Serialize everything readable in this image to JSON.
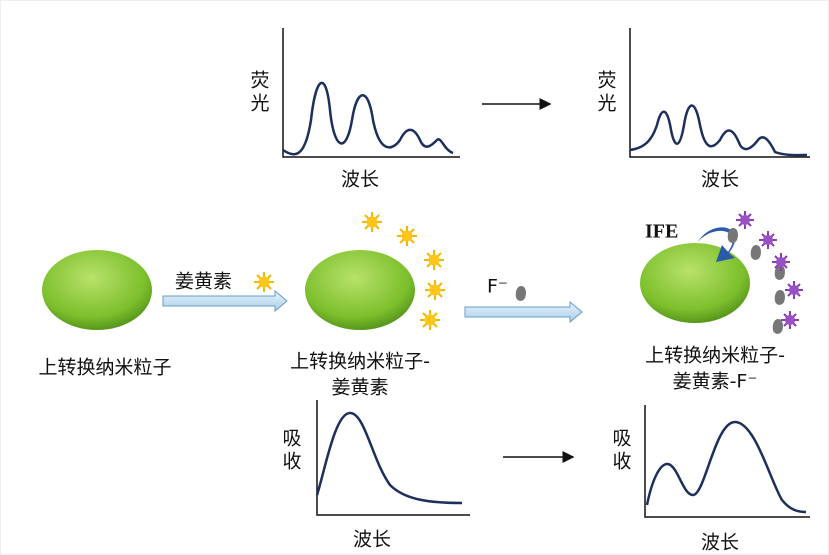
{
  "top_left_plot": {
    "y_label": "荧光",
    "x_label": "波长"
  },
  "top_right_plot": {
    "y_label": "荧光",
    "x_label": "波长"
  },
  "bottom_left_plot": {
    "y_label": "吸收",
    "x_label": "波长"
  },
  "bottom_right_plot": {
    "y_label": "吸收",
    "x_label": "波长"
  },
  "nodes": [
    {
      "label_lines": [
        "上转换纳米粒子"
      ]
    },
    {
      "label_lines": [
        "上转换纳米粒子-",
        "姜黄素"
      ]
    },
    {
      "label_lines": [
        "上转换纳米粒子-",
        "姜黄素-F⁻"
      ]
    }
  ],
  "arrows": [
    {
      "label": "姜黄素"
    },
    {
      "label": "F⁻"
    }
  ],
  "ife_label": "IFE"
}
